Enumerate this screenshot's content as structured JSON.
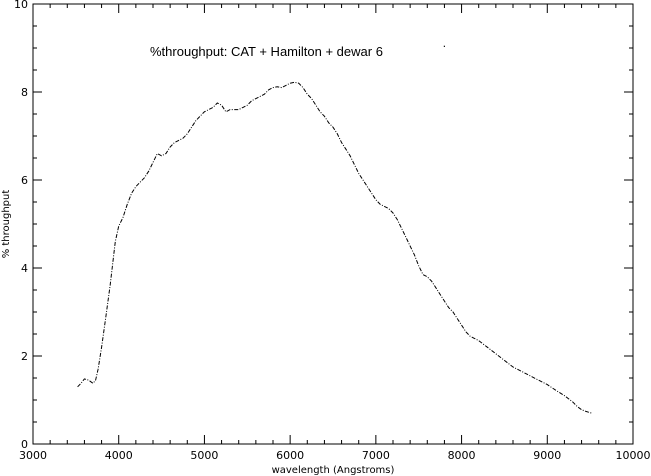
{
  "chart_data": {
    "type": "line",
    "title": "%throughput: CAT + Hamilton + dewar 6",
    "xlabel": "wavelength (Angstroms)",
    "ylabel": "% throughput",
    "xlim": [
      3000,
      10000
    ],
    "ylim": [
      0,
      10
    ],
    "x_ticks": [
      "3000",
      "4000",
      "5000",
      "6000",
      "7000",
      "8000",
      "9000",
      "10000"
    ],
    "y_ticks": [
      "0",
      "2",
      "4",
      "6",
      "8",
      "10"
    ],
    "grid": false,
    "legend": "none",
    "series": [
      {
        "color": "#000000",
        "line_style": "dash-dot",
        "points": [
          [
            3520,
            1.3
          ],
          [
            3560,
            1.38
          ],
          [
            3600,
            1.48
          ],
          [
            3650,
            1.45
          ],
          [
            3700,
            1.38
          ],
          [
            3730,
            1.45
          ],
          [
            3760,
            1.7
          ],
          [
            3800,
            2.2
          ],
          [
            3850,
            2.9
          ],
          [
            3900,
            3.6
          ],
          [
            3930,
            4.1
          ],
          [
            3960,
            4.6
          ],
          [
            4000,
            4.95
          ],
          [
            4050,
            5.15
          ],
          [
            4100,
            5.45
          ],
          [
            4150,
            5.7
          ],
          [
            4200,
            5.85
          ],
          [
            4250,
            5.95
          ],
          [
            4300,
            6.05
          ],
          [
            4350,
            6.2
          ],
          [
            4400,
            6.4
          ],
          [
            4450,
            6.6
          ],
          [
            4500,
            6.55
          ],
          [
            4550,
            6.6
          ],
          [
            4600,
            6.75
          ],
          [
            4650,
            6.85
          ],
          [
            4700,
            6.9
          ],
          [
            4750,
            6.95
          ],
          [
            4800,
            7.05
          ],
          [
            4850,
            7.2
          ],
          [
            4900,
            7.35
          ],
          [
            4950,
            7.45
          ],
          [
            5000,
            7.55
          ],
          [
            5050,
            7.6
          ],
          [
            5100,
            7.65
          ],
          [
            5150,
            7.75
          ],
          [
            5200,
            7.7
          ],
          [
            5250,
            7.55
          ],
          [
            5300,
            7.6
          ],
          [
            5350,
            7.6
          ],
          [
            5400,
            7.6
          ],
          [
            5450,
            7.65
          ],
          [
            5500,
            7.7
          ],
          [
            5550,
            7.8
          ],
          [
            5600,
            7.85
          ],
          [
            5650,
            7.9
          ],
          [
            5700,
            7.95
          ],
          [
            5750,
            8.05
          ],
          [
            5800,
            8.1
          ],
          [
            5850,
            8.12
          ],
          [
            5900,
            8.1
          ],
          [
            5950,
            8.15
          ],
          [
            6000,
            8.2
          ],
          [
            6050,
            8.22
          ],
          [
            6100,
            8.2
          ],
          [
            6150,
            8.1
          ],
          [
            6200,
            7.95
          ],
          [
            6250,
            7.85
          ],
          [
            6300,
            7.7
          ],
          [
            6350,
            7.55
          ],
          [
            6400,
            7.45
          ],
          [
            6450,
            7.3
          ],
          [
            6500,
            7.2
          ],
          [
            6550,
            7.05
          ],
          [
            6600,
            6.85
          ],
          [
            6650,
            6.7
          ],
          [
            6700,
            6.55
          ],
          [
            6750,
            6.35
          ],
          [
            6800,
            6.15
          ],
          [
            6850,
            6.0
          ],
          [
            6900,
            5.85
          ],
          [
            6950,
            5.7
          ],
          [
            7000,
            5.55
          ],
          [
            7050,
            5.45
          ],
          [
            7100,
            5.4
          ],
          [
            7150,
            5.35
          ],
          [
            7200,
            5.25
          ],
          [
            7250,
            5.1
          ],
          [
            7300,
            4.9
          ],
          [
            7350,
            4.7
          ],
          [
            7400,
            4.5
          ],
          [
            7450,
            4.3
          ],
          [
            7500,
            4.05
          ],
          [
            7550,
            3.85
          ],
          [
            7600,
            3.8
          ],
          [
            7650,
            3.7
          ],
          [
            7700,
            3.55
          ],
          [
            7750,
            3.4
          ],
          [
            7800,
            3.25
          ],
          [
            7850,
            3.1
          ],
          [
            7900,
            3.0
          ],
          [
            7950,
            2.85
          ],
          [
            8000,
            2.7
          ],
          [
            8050,
            2.55
          ],
          [
            8100,
            2.45
          ],
          [
            8150,
            2.4
          ],
          [
            8200,
            2.35
          ],
          [
            8300,
            2.2
          ],
          [
            8400,
            2.05
          ],
          [
            8500,
            1.9
          ],
          [
            8600,
            1.75
          ],
          [
            8700,
            1.65
          ],
          [
            8800,
            1.55
          ],
          [
            8900,
            1.45
          ],
          [
            9000,
            1.35
          ],
          [
            9100,
            1.22
          ],
          [
            9200,
            1.1
          ],
          [
            9300,
            0.95
          ],
          [
            9350,
            0.85
          ],
          [
            9400,
            0.78
          ],
          [
            9450,
            0.74
          ],
          [
            9520,
            0.7
          ]
        ]
      }
    ],
    "annotations": [
      {
        "text": "·",
        "x": 7800,
        "y": 8.95
      }
    ]
  }
}
